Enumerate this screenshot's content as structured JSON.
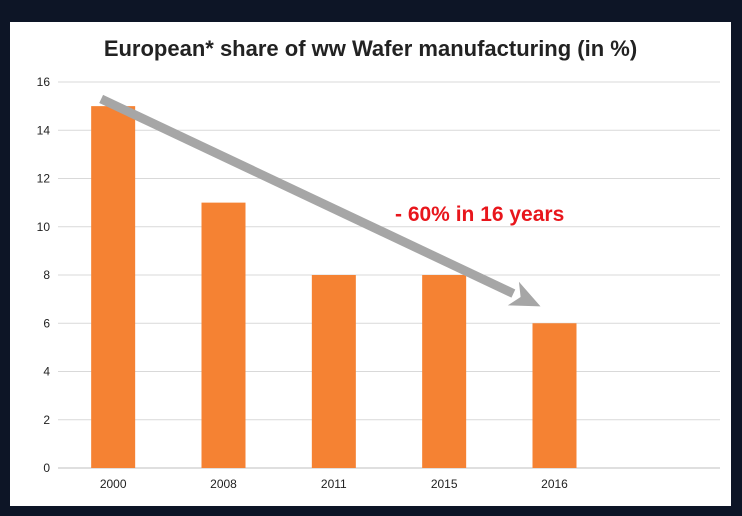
{
  "chart_data": {
    "type": "bar",
    "title": "European* share of ww Wafer manufacturing (in %)",
    "categories": [
      "2000",
      "2008",
      "2011",
      "2015",
      "2016"
    ],
    "values": [
      15,
      11,
      8,
      8,
      6
    ],
    "ylim": [
      0,
      16
    ],
    "yticks": [
      "0",
      "2",
      "4",
      "6",
      "8",
      "10",
      "12",
      "14",
      "16"
    ],
    "grid": true,
    "legend": "none",
    "annotation": {
      "text": "- 60% in 16 years"
    },
    "colors": {
      "bar": "#f58233",
      "arrow": "#a6a6a6",
      "annotation": "#e8161c",
      "grid": "#d9d9d9"
    }
  }
}
